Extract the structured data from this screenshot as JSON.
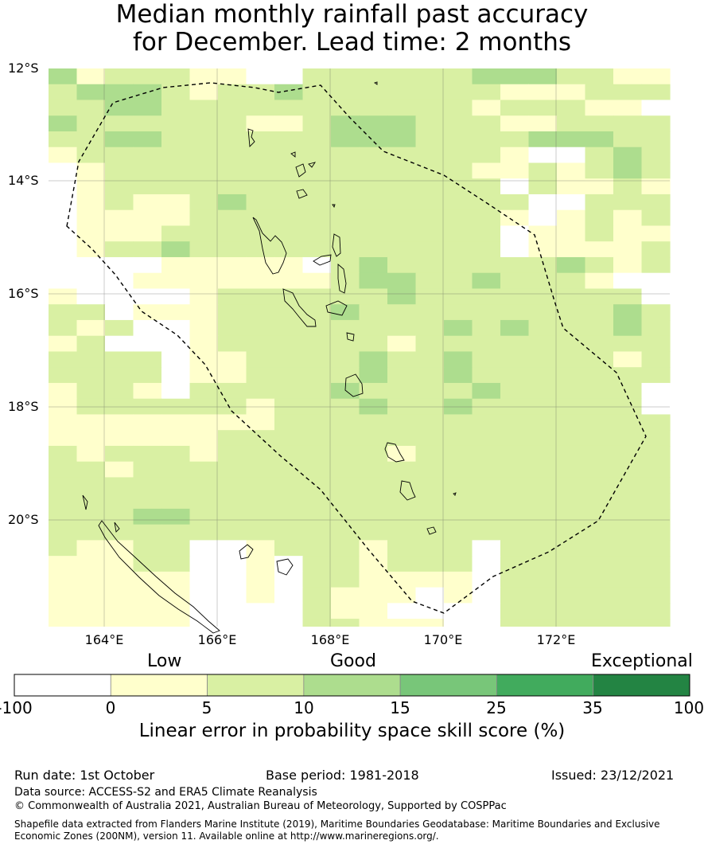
{
  "title_line1": "Median monthly rainfall past accuracy",
  "title_line2": "for December. Lead time: 2 months",
  "lat_labels": [
    "12°S",
    "14°S",
    "16°S",
    "18°S",
    "20°S"
  ],
  "lon_labels": [
    "164°E",
    "166°E",
    "168°E",
    "170°E",
    "172°E"
  ],
  "colorbar": {
    "categories": [
      "Low",
      "Good",
      "Exceptional"
    ],
    "ticks": [
      "-100",
      "0",
      "5",
      "10",
      "15",
      "25",
      "35",
      "100"
    ],
    "colors": [
      "#ffffff",
      "#ffffcc",
      "#d9f0a3",
      "#addd8e",
      "#78c679",
      "#41ab5d",
      "#238443"
    ],
    "title": "Linear error in probability space skill score (%)"
  },
  "footer": {
    "run_date": "Run date: 1st October",
    "base_period": "Base period: 1981-2018",
    "issued": "Issued: 23/12/2021",
    "data_source": "Data source: ACCESS-S2 and ERA5 Climate Reanalysis",
    "copyright": "© Commonwealth of Australia 2021, Australian Bureau of Meteorology, Supported by COSPPac",
    "shapefile": "Shapefile data extracted from Flanders Marine Institute (2019), Maritime Boundaries Geodatabase: Maritime Boundaries and Exclusive Economic Zones (200NM), version 11. Available online at http://www.marineregions.org/."
  },
  "grid": {
    "lon_start": 163,
    "lat_start": 12,
    "step": 0.5,
    "rows": [
      "3122211002222223332211",
      "2333212232222222111222",
      "2233222222222221222110",
      "3222222112333222112222",
      "2233222222333222233322",
      "1222222222222222100232",
      "0122222222222221121232",
      "0122222222222222021121",
      "0121123222222222200222",
      "0111122222222222101212",
      "0111222222222222011211",
      "0122322222222222011112",
      "0000111110232222223212",
      "0001111111233223222100",
      "1000012222223222222220",
      "2201112222322222222232",
      "2120012222222232322232",
      "1200012222221222222222",
      "2222011222232232222212",
      "2222011222232232222222",
      "1221022222322223222220",
      "1222222122232232222220",
      "1111111122222222222222",
      "1111112222222222222222",
      "2122212222221222222222",
      "2212222222222222222222",
      "2222222222222222222222",
      "2222222222222222222222",
      "2223322222222222222222",
      "2222222222222222222222",
      "2112200122212220222222",
      "1112200102212220222222",
      "1111100102211110222222",
      "1111100102111010222222",
      "1111100002110000222222",
      "1111100002211100222222"
    ]
  }
}
